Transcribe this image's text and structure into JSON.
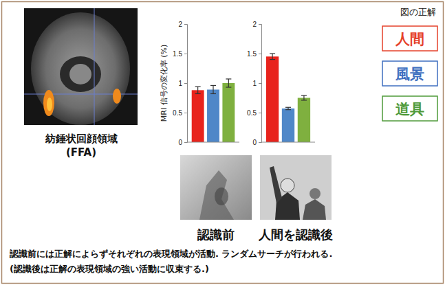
{
  "figure": {
    "brain_caption": "紡錘状回顔領域",
    "brain_caption_sub": "(FFA)",
    "photo_captions": [
      "認識前",
      "人間を認識後"
    ],
    "footnote": [
      "認識前には正解によらずそれぞれの表現領域が活動. ランダムサーチが行われる.",
      "(認識後は正解の表現領域の強い活動に収束する.)"
    ],
    "legend": {
      "title": "図の正解",
      "entries": [
        {
          "label": "人間",
          "color": "#e5412b"
        },
        {
          "label": "風景",
          "color": "#3f6fc0"
        },
        {
          "label": "道具",
          "color": "#4f9a3a"
        }
      ]
    }
  },
  "chart_data": [
    {
      "type": "bar",
      "y_label": "MRI 信号の変化率 (%)",
      "categories": [
        null,
        null,
        null
      ],
      "values": [
        0.88,
        0.89,
        1.0
      ],
      "errors": [
        0.06,
        0.07,
        0.07
      ],
      "colors": [
        "#e8231c",
        "#4f87c8",
        "#7fb03f"
      ],
      "ylim": [
        0,
        2
      ],
      "yticks": [
        0,
        0.5,
        1,
        1.5,
        2
      ],
      "grid": false
    },
    {
      "type": "bar",
      "categories": [
        null,
        null,
        null
      ],
      "values": [
        1.45,
        0.57,
        0.75
      ],
      "errors": [
        0.05,
        0.02,
        0.04
      ],
      "colors": [
        "#e8231c",
        "#4f87c8",
        "#7fb03f"
      ],
      "ylim": [
        0,
        2
      ],
      "yticks": [
        0,
        0.5,
        1,
        1.5,
        2
      ],
      "grid": false
    }
  ]
}
